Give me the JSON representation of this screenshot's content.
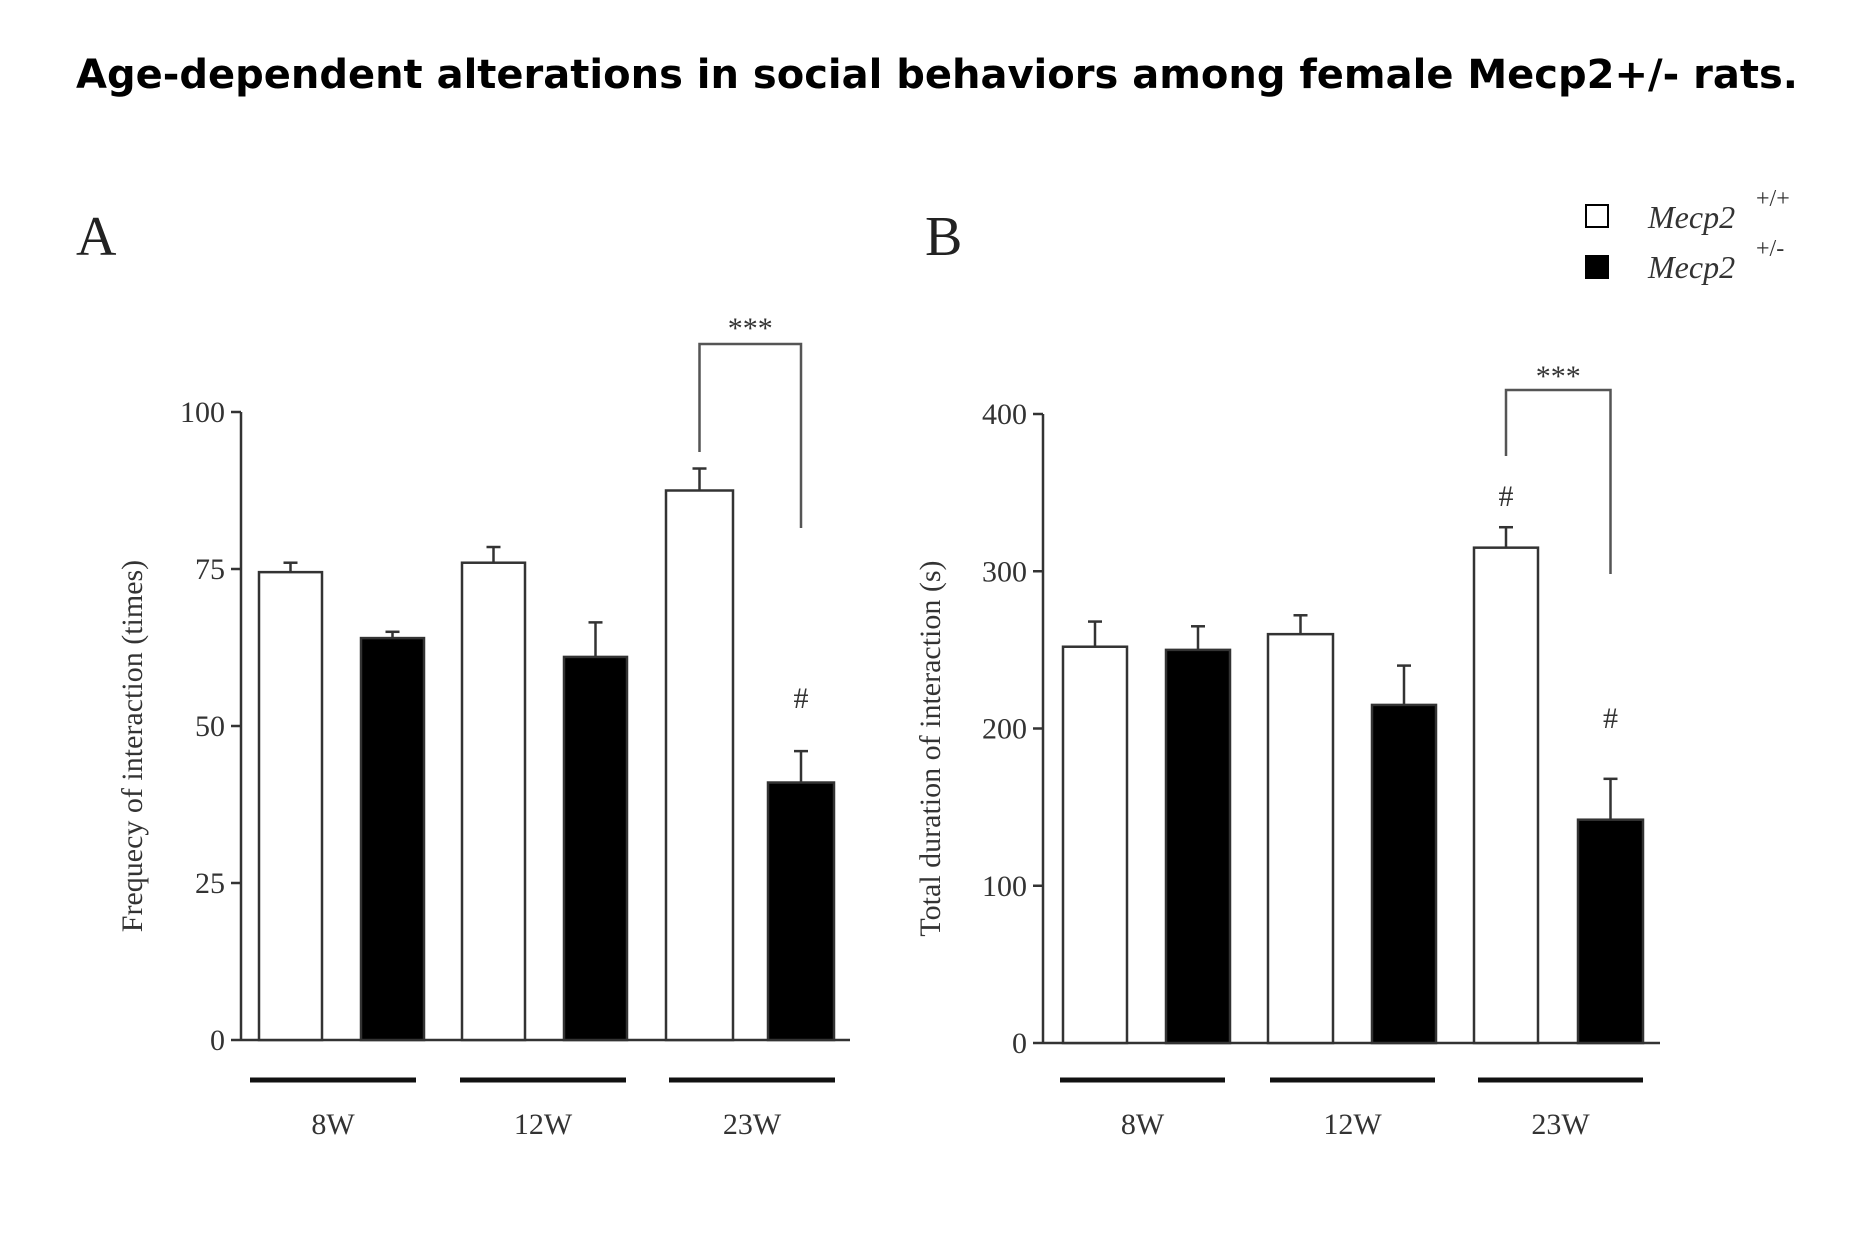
{
  "title": "Age-dependent alterations in social behaviors among female Mecp2+/- rats.",
  "legend": {
    "items": [
      {
        "label": "Mecp2",
        "sup": "+/+",
        "color": "#ffffff"
      },
      {
        "label": "Mecp2",
        "sup": "+/-",
        "color": "#000000"
      }
    ]
  },
  "chart_data": [
    {
      "type": "bar",
      "panel": "A",
      "ylabel": "Frequecy of interaction (times)",
      "xlabel": "",
      "ylim": [
        0,
        100
      ],
      "yticks": [
        0,
        25,
        50,
        75,
        100
      ],
      "categories": [
        "8W",
        "12W",
        "23W"
      ],
      "series": [
        {
          "name": "Mecp2+/+",
          "color": "#ffffff",
          "values": [
            74.5,
            76,
            87.5
          ],
          "errors": [
            1.5,
            2.5,
            3.5
          ]
        },
        {
          "name": "Mecp2+/-",
          "color": "#000000",
          "values": [
            64,
            61,
            41
          ],
          "errors": [
            1,
            5.5,
            5
          ]
        }
      ],
      "annotations": [
        {
          "text": "***",
          "between": [
            "23W",
            "23W"
          ]
        },
        {
          "text": "#",
          "category": "23W",
          "series": "Mecp2+/-"
        }
      ]
    },
    {
      "type": "bar",
      "panel": "B",
      "ylabel": "Total duration of  interaction  (s)",
      "xlabel": "",
      "ylim": [
        0,
        400
      ],
      "yticks": [
        0,
        100,
        200,
        300,
        400
      ],
      "categories": [
        "8W",
        "12W",
        "23W"
      ],
      "series": [
        {
          "name": "Mecp2+/+",
          "color": "#ffffff",
          "values": [
            252,
            260,
            315
          ],
          "errors": [
            16,
            12,
            13
          ]
        },
        {
          "name": "Mecp2+/-",
          "color": "#000000",
          "values": [
            250,
            215,
            142
          ],
          "errors": [
            15,
            25,
            26
          ]
        }
      ],
      "annotations": [
        {
          "text": "***",
          "between": [
            "23W",
            "23W"
          ]
        },
        {
          "text": "#",
          "category": "23W",
          "series": "Mecp2+/+"
        },
        {
          "text": "#",
          "category": "23W",
          "series": "Mecp2+/-"
        }
      ]
    }
  ]
}
